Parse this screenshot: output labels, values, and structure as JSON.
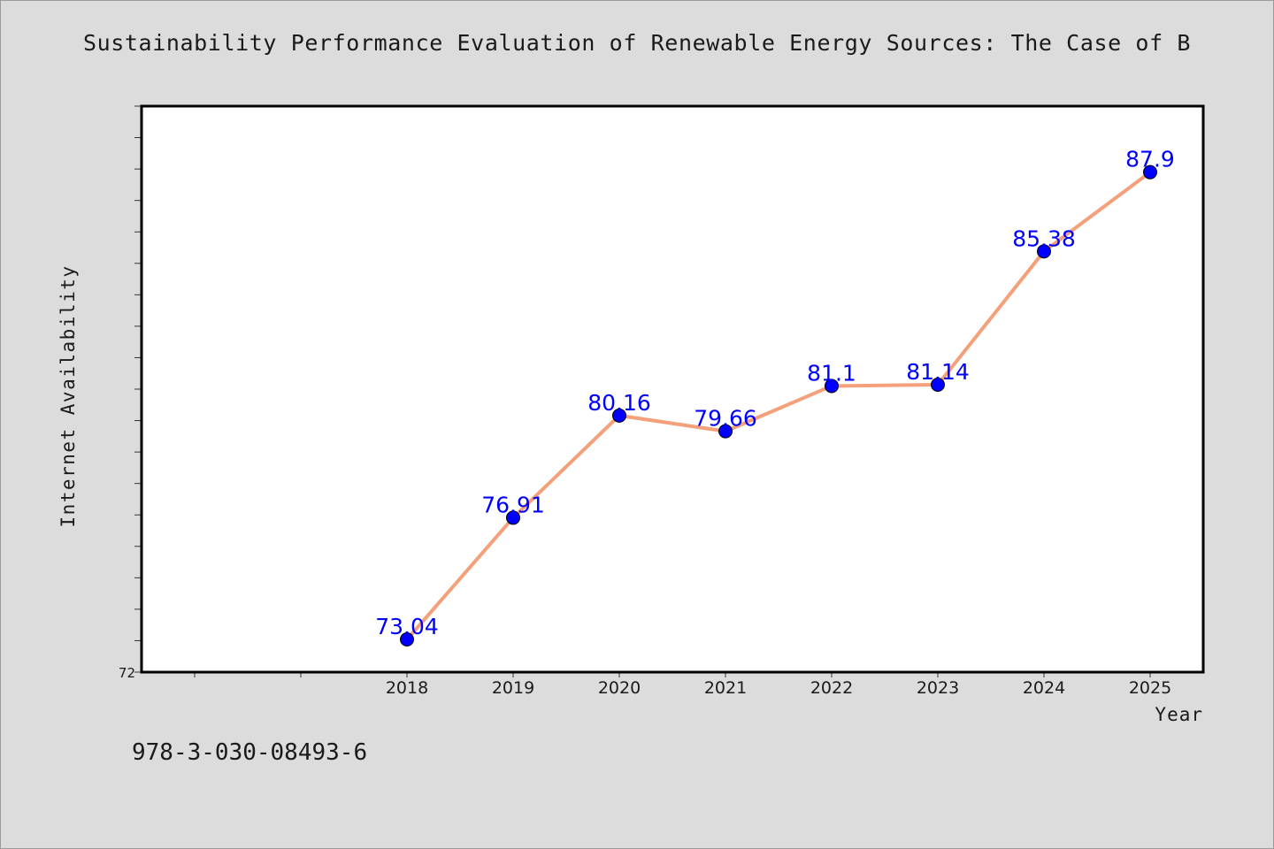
{
  "chart_data": {
    "type": "line",
    "title": "Sustainability Performance Evaluation of Renewable Energy Sources: The Case of B",
    "xlabel": "Year",
    "ylabel": "Internet Availability",
    "categories": [
      "2018",
      "2019",
      "2020",
      "2021",
      "2022",
      "2023",
      "2024",
      "2025"
    ],
    "series": [
      {
        "values": [
          73.04,
          76.91,
          80.16,
          79.66,
          81.1,
          81.14,
          85.38,
          87.9
        ],
        "labels": [
          "73.04",
          "76.91",
          "80.16",
          "79.66",
          "81.1",
          "81.14",
          "85.38",
          "87.9"
        ]
      }
    ],
    "y_tick_labels": [
      "72"
    ],
    "ylim": [
      72,
      90
    ],
    "line_color": "#f4a07a",
    "marker_color": "#0000ff",
    "label_color": "#0000ff",
    "grid": false,
    "legend": "none"
  },
  "footnote": "978-3-030-08493-6"
}
